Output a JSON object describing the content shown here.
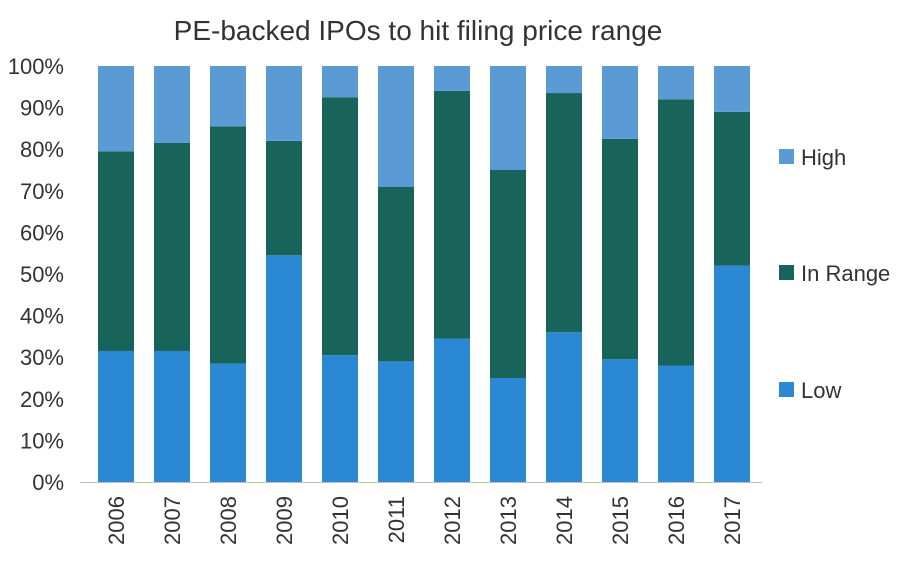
{
  "chart_data": {
    "type": "bar",
    "stacked": true,
    "title": "PE-backed IPOs to hit filing price range",
    "xlabel": "",
    "ylabel": "",
    "ylim": [
      0,
      100
    ],
    "y_ticks": [
      "0%",
      "10%",
      "20%",
      "30%",
      "40%",
      "50%",
      "60%",
      "70%",
      "80%",
      "90%",
      "100%"
    ],
    "categories": [
      "2006",
      "2007",
      "2008",
      "2009",
      "2010",
      "2011",
      "2012",
      "2013",
      "2014",
      "2015",
      "2016",
      "2017"
    ],
    "series": [
      {
        "name": "Low",
        "color": "#2B88D4",
        "values": [
          31.5,
          31.5,
          28.5,
          54.5,
          30.5,
          29.0,
          34.5,
          25.0,
          36.0,
          29.5,
          28.0,
          52.0
        ]
      },
      {
        "name": "In Range",
        "color": "#19645A",
        "values": [
          48.0,
          50.0,
          57.0,
          27.5,
          62.0,
          42.0,
          59.5,
          50.0,
          57.5,
          53.0,
          64.0,
          37.0
        ]
      },
      {
        "name": "High",
        "color": "#5B9BD5",
        "values": [
          20.5,
          18.5,
          14.5,
          18.0,
          7.5,
          29.0,
          6.0,
          25.0,
          6.5,
          17.5,
          8.0,
          11.0
        ]
      }
    ],
    "grid": false,
    "legend_position": "right",
    "legend_order": [
      "High",
      "In Range",
      "Low"
    ]
  }
}
